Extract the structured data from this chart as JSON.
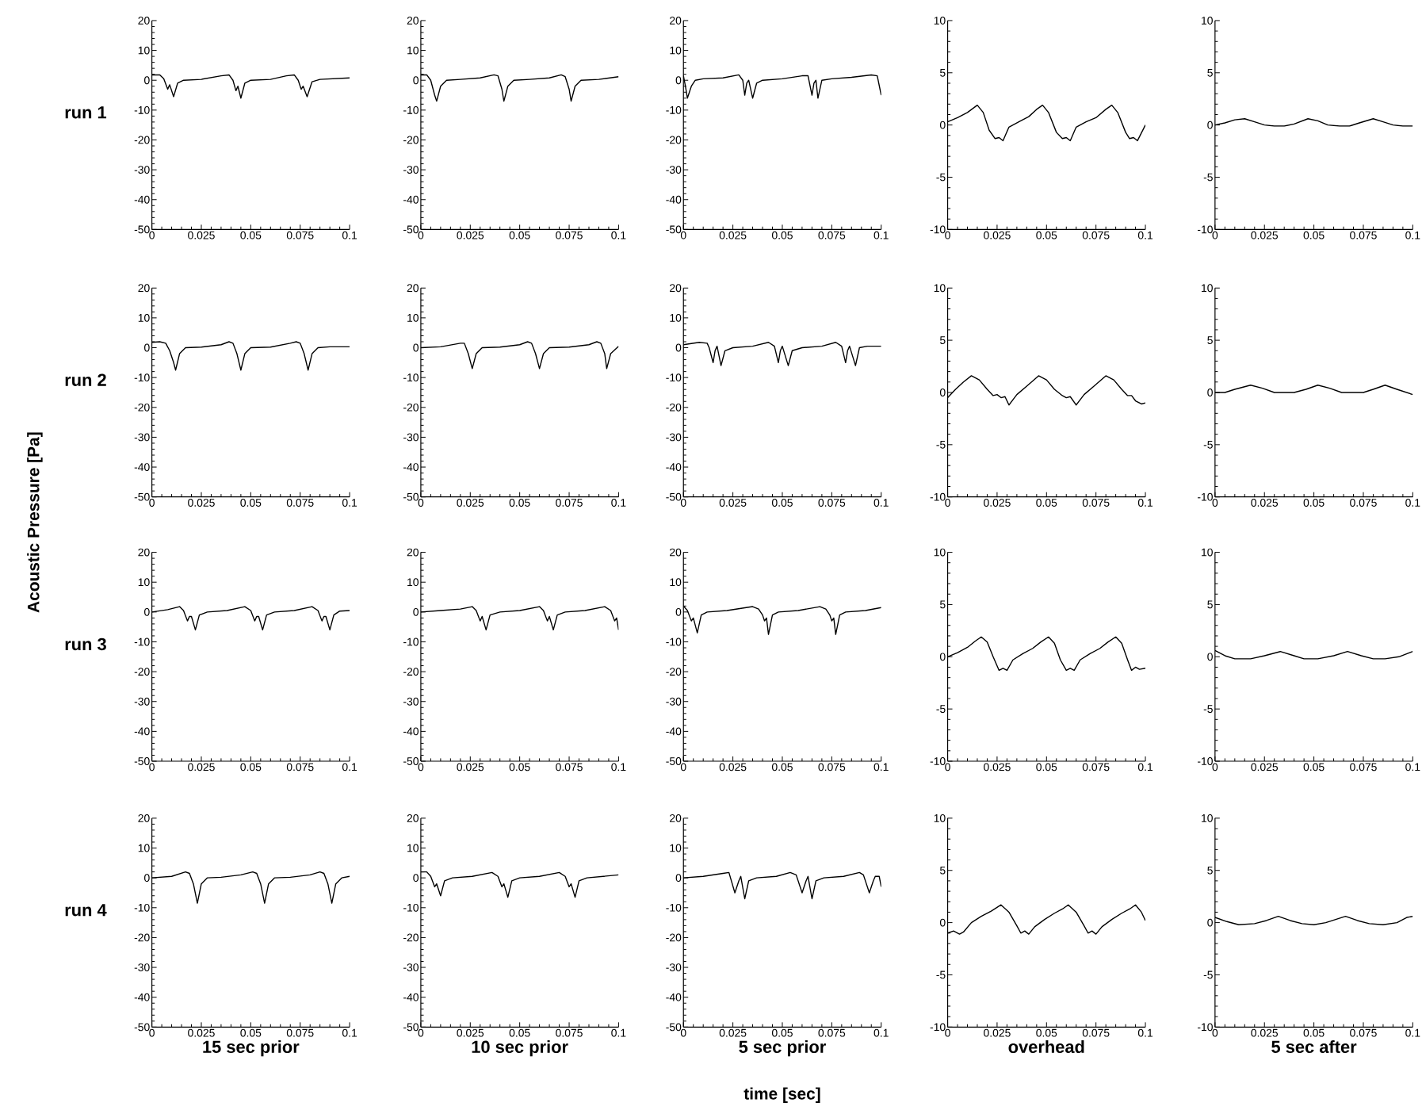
{
  "chart_data": [
    {
      "type": "line",
      "ylabel": "run 1",
      "xlim": [
        0,
        0.1
      ],
      "ylim": [
        -50,
        20
      ],
      "xticks": [
        0,
        0.025,
        0.05,
        0.075,
        0.1
      ],
      "yticks": [
        -50,
        -40,
        -30,
        -20,
        -10,
        0,
        10,
        20
      ],
      "x": [
        0,
        0.004,
        0.006,
        0.008,
        0.009,
        0.011,
        0.013,
        0.016,
        0.025,
        0.035,
        0.039,
        0.041,
        0.0425,
        0.0435,
        0.045,
        0.047,
        0.05,
        0.06,
        0.068,
        0.072,
        0.074,
        0.0755,
        0.0765,
        0.0785,
        0.081,
        0.085,
        0.1
      ],
      "series": [
        {
          "color": "#000000",
          "values": [
            1.8,
            1.8,
            0.5,
            -3,
            -1.5,
            -5.5,
            -1,
            0,
            0.3,
            1.5,
            1.8,
            0,
            -3.5,
            -2,
            -6,
            -1,
            0,
            0.3,
            1.5,
            1.8,
            0,
            -3,
            -2,
            -5.5,
            -0.5,
            0.3,
            0.8
          ]
        }
      ]
    },
    {
      "type": "line",
      "xlim": [
        0,
        0.1
      ],
      "ylim": [
        -50,
        20
      ],
      "xticks": [
        0,
        0.025,
        0.05,
        0.075,
        0.1
      ],
      "yticks": [
        -50,
        -40,
        -30,
        -20,
        -10,
        0,
        10,
        20
      ],
      "x": [
        0,
        0.003,
        0.005,
        0.007,
        0.008,
        0.01,
        0.013,
        0.02,
        0.03,
        0.037,
        0.039,
        0.041,
        0.042,
        0.044,
        0.047,
        0.055,
        0.065,
        0.071,
        0.073,
        0.075,
        0.076,
        0.078,
        0.081,
        0.09,
        0.1
      ],
      "series": [
        {
          "color": "#000000",
          "values": [
            1.8,
            1.8,
            0,
            -5,
            -7,
            -2,
            0,
            0.3,
            0.8,
            1.8,
            1.5,
            -3,
            -7,
            -2,
            0,
            0.3,
            0.8,
            1.8,
            1.2,
            -3,
            -7,
            -2,
            0,
            0.3,
            1.2
          ]
        }
      ]
    },
    {
      "type": "line",
      "xlim": [
        0,
        0.1
      ],
      "ylim": [
        -50,
        20
      ],
      "xticks": [
        0,
        0.025,
        0.05,
        0.075,
        0.1
      ],
      "yticks": [
        -50,
        -40,
        -30,
        -20,
        -10,
        0,
        10,
        20
      ],
      "x": [
        0,
        0.001,
        0.002,
        0.004,
        0.006,
        0.01,
        0.02,
        0.028,
        0.03,
        0.031,
        0.032,
        0.033,
        0.035,
        0.037,
        0.04,
        0.05,
        0.06,
        0.063,
        0.065,
        0.066,
        0.067,
        0.068,
        0.07,
        0.075,
        0.085,
        0.095,
        0.098,
        0.1
      ],
      "series": [
        {
          "color": "#000000",
          "values": [
            1.5,
            -2,
            -6,
            -2,
            0,
            0.5,
            0.8,
            1.8,
            0,
            -5,
            -1,
            0,
            -6,
            -1,
            0,
            0.5,
            1.5,
            1.5,
            -5,
            -1,
            0,
            -6,
            0,
            0.5,
            1,
            1.8,
            1.5,
            -5
          ]
        }
      ]
    },
    {
      "type": "line",
      "xlim": [
        0,
        0.1
      ],
      "ylim": [
        -10,
        10
      ],
      "xticks": [
        0,
        0.025,
        0.05,
        0.075,
        0.1
      ],
      "yticks": [
        -10,
        -5,
        0,
        5,
        10
      ],
      "x": [
        0,
        0.005,
        0.01,
        0.015,
        0.018,
        0.021,
        0.024,
        0.026,
        0.028,
        0.031,
        0.036,
        0.041,
        0.045,
        0.048,
        0.051,
        0.055,
        0.058,
        0.06,
        0.062,
        0.065,
        0.07,
        0.075,
        0.08,
        0.083,
        0.086,
        0.09,
        0.092,
        0.094,
        0.096,
        0.1
      ],
      "series": [
        {
          "color": "#000000",
          "values": [
            0.3,
            0.7,
            1.2,
            1.9,
            1.2,
            -0.5,
            -1.3,
            -1.2,
            -1.5,
            -0.2,
            0.3,
            0.8,
            1.5,
            1.9,
            1.2,
            -0.7,
            -1.3,
            -1.2,
            -1.5,
            -0.2,
            0.3,
            0.7,
            1.5,
            1.9,
            1.2,
            -0.7,
            -1.3,
            -1.2,
            -1.5,
            0
          ]
        }
      ]
    },
    {
      "type": "line",
      "xlim": [
        0,
        0.1
      ],
      "ylim": [
        -10,
        10
      ],
      "xticks": [
        0,
        0.025,
        0.05,
        0.075,
        0.1
      ],
      "yticks": [
        -10,
        -5,
        0,
        5,
        10
      ],
      "x": [
        0,
        0.005,
        0.01,
        0.015,
        0.02,
        0.025,
        0.03,
        0.035,
        0.04,
        0.047,
        0.052,
        0.057,
        0.063,
        0.068,
        0.073,
        0.08,
        0.085,
        0.09,
        0.095,
        0.1
      ],
      "series": [
        {
          "color": "#000000",
          "values": [
            0,
            0.2,
            0.5,
            0.6,
            0.3,
            0,
            -0.1,
            -0.1,
            0.1,
            0.6,
            0.4,
            0,
            -0.1,
            -0.1,
            0.2,
            0.6,
            0.3,
            0,
            -0.1,
            -0.1
          ]
        }
      ]
    },
    {
      "type": "line",
      "ylabel": "run 2",
      "xlim": [
        0,
        0.1
      ],
      "ylim": [
        -50,
        20
      ],
      "xticks": [
        0,
        0.025,
        0.05,
        0.075,
        0.1
      ],
      "yticks": [
        -50,
        -40,
        -30,
        -20,
        -10,
        0,
        10,
        20
      ],
      "x": [
        0,
        0.004,
        0.007,
        0.009,
        0.011,
        0.012,
        0.014,
        0.017,
        0.025,
        0.035,
        0.039,
        0.041,
        0.043,
        0.045,
        0.047,
        0.05,
        0.06,
        0.07,
        0.073,
        0.075,
        0.077,
        0.079,
        0.081,
        0.084,
        0.09,
        0.1
      ],
      "series": [
        {
          "color": "#000000",
          "values": [
            1.8,
            2,
            1.5,
            -1,
            -5,
            -7.5,
            -2,
            0,
            0.2,
            1,
            2,
            1.5,
            -2,
            -7.5,
            -2,
            0,
            0.2,
            1.5,
            2,
            1.5,
            -2,
            -7.5,
            -2,
            0,
            0.3,
            0.3
          ]
        }
      ]
    },
    {
      "type": "line",
      "xlim": [
        0,
        0.1
      ],
      "ylim": [
        -50,
        20
      ],
      "xticks": [
        0,
        0.025,
        0.05,
        0.075,
        0.1
      ],
      "yticks": [
        -50,
        -40,
        -30,
        -20,
        -10,
        0,
        10,
        20
      ],
      "x": [
        0,
        0.01,
        0.02,
        0.022,
        0.024,
        0.026,
        0.028,
        0.031,
        0.04,
        0.05,
        0.054,
        0.056,
        0.058,
        0.06,
        0.062,
        0.065,
        0.075,
        0.085,
        0.089,
        0.091,
        0.093,
        0.094,
        0.096,
        0.1
      ],
      "series": [
        {
          "color": "#000000",
          "values": [
            0,
            0.3,
            1.5,
            1.5,
            -2,
            -7,
            -2,
            0,
            0.2,
            1,
            2,
            1.5,
            -2,
            -7,
            -2,
            0,
            0.2,
            1,
            2,
            1.5,
            -2,
            -7,
            -2,
            0.5
          ]
        }
      ]
    },
    {
      "type": "line",
      "xlim": [
        0,
        0.1
      ],
      "ylim": [
        -50,
        20
      ],
      "xticks": [
        0,
        0.025,
        0.05,
        0.075,
        0.1
      ],
      "yticks": [
        -50,
        -40,
        -30,
        -20,
        -10,
        0,
        10,
        20
      ],
      "x": [
        0,
        0.008,
        0.012,
        0.013,
        0.015,
        0.016,
        0.017,
        0.019,
        0.021,
        0.025,
        0.035,
        0.043,
        0.046,
        0.048,
        0.049,
        0.05,
        0.053,
        0.055,
        0.06,
        0.07,
        0.077,
        0.08,
        0.082,
        0.083,
        0.084,
        0.087,
        0.089,
        0.093,
        0.1
      ],
      "series": [
        {
          "color": "#000000",
          "values": [
            1,
            1.8,
            1.5,
            0,
            -5,
            -1,
            0.5,
            -6,
            -1,
            0,
            0.5,
            1.8,
            0.5,
            -5,
            -1,
            0.5,
            -6,
            -1,
            0,
            0.5,
            1.8,
            0.5,
            -5,
            -1,
            0.5,
            -6,
            0,
            0.5,
            0.5
          ]
        }
      ]
    },
    {
      "type": "line",
      "xlim": [
        0,
        0.1
      ],
      "ylim": [
        -10,
        10
      ],
      "xticks": [
        0,
        0.025,
        0.05,
        0.075,
        0.1
      ],
      "yticks": [
        -10,
        -5,
        0,
        5,
        10
      ],
      "x": [
        0,
        0.004,
        0.008,
        0.012,
        0.016,
        0.02,
        0.023,
        0.025,
        0.027,
        0.029,
        0.031,
        0.035,
        0.04,
        0.046,
        0.05,
        0.054,
        0.058,
        0.06,
        0.062,
        0.065,
        0.069,
        0.074,
        0.08,
        0.084,
        0.088,
        0.091,
        0.093,
        0.095,
        0.098,
        0.1
      ],
      "series": [
        {
          "color": "#000000",
          "values": [
            -0.5,
            0.3,
            1,
            1.6,
            1.2,
            0.3,
            -0.3,
            -0.2,
            -0.5,
            -0.4,
            -1.2,
            -0.2,
            0.6,
            1.6,
            1.2,
            0.3,
            -0.3,
            -0.5,
            -0.4,
            -1.2,
            -0.2,
            0.6,
            1.6,
            1.2,
            0.3,
            -0.3,
            -0.3,
            -0.8,
            -1.1,
            -1
          ]
        }
      ]
    },
    {
      "type": "line",
      "xlim": [
        0,
        0.1
      ],
      "ylim": [
        -10,
        10
      ],
      "xticks": [
        0,
        0.025,
        0.05,
        0.075,
        0.1
      ],
      "yticks": [
        -10,
        -5,
        0,
        5,
        10
      ],
      "x": [
        0,
        0.005,
        0.01,
        0.018,
        0.024,
        0.03,
        0.035,
        0.04,
        0.046,
        0.052,
        0.058,
        0.064,
        0.07,
        0.075,
        0.08,
        0.086,
        0.092,
        0.1
      ],
      "series": [
        {
          "color": "#000000",
          "values": [
            0,
            0,
            0.3,
            0.7,
            0.4,
            0,
            0,
            0,
            0.3,
            0.7,
            0.4,
            0,
            0,
            0,
            0.3,
            0.7,
            0.3,
            -0.2
          ]
        }
      ]
    },
    {
      "type": "line",
      "ylabel": "run 3",
      "annotations": [
        "Acoustic Pressure [Pa]"
      ],
      "xlim": [
        0,
        0.1
      ],
      "ylim": [
        -50,
        20
      ],
      "xticks": [
        0,
        0.025,
        0.05,
        0.075,
        0.1
      ],
      "yticks": [
        -50,
        -40,
        -30,
        -20,
        -10,
        0,
        10,
        20
      ],
      "x": [
        0,
        0.008,
        0.014,
        0.016,
        0.018,
        0.019,
        0.02,
        0.022,
        0.024,
        0.028,
        0.038,
        0.047,
        0.05,
        0.052,
        0.053,
        0.054,
        0.056,
        0.058,
        0.062,
        0.072,
        0.081,
        0.084,
        0.086,
        0.087,
        0.088,
        0.09,
        0.092,
        0.095,
        0.1
      ],
      "series": [
        {
          "color": "#000000",
          "values": [
            0,
            0.8,
            1.8,
            0.5,
            -3,
            -1.5,
            -1.5,
            -6,
            -1,
            0,
            0.5,
            1.8,
            0.5,
            -3,
            -1.5,
            -1.5,
            -6,
            -1,
            0,
            0.5,
            1.8,
            0.5,
            -3,
            -1.5,
            -1.5,
            -6,
            -1,
            0.3,
            0.5
          ]
        }
      ]
    },
    {
      "type": "line",
      "xlim": [
        0,
        0.1
      ],
      "ylim": [
        -50,
        20
      ],
      "xticks": [
        0,
        0.025,
        0.05,
        0.075,
        0.1
      ],
      "yticks": [
        -50,
        -40,
        -30,
        -20,
        -10,
        0,
        10,
        20
      ],
      "x": [
        0,
        0.01,
        0.02,
        0.026,
        0.028,
        0.03,
        0.031,
        0.033,
        0.035,
        0.04,
        0.05,
        0.06,
        0.062,
        0.064,
        0.065,
        0.067,
        0.069,
        0.073,
        0.083,
        0.093,
        0.096,
        0.098,
        0.099,
        0.1
      ],
      "series": [
        {
          "color": "#000000",
          "values": [
            0,
            0.5,
            1,
            1.8,
            0.5,
            -3,
            -1.5,
            -6,
            -1,
            0,
            0.5,
            1.8,
            0.5,
            -3,
            -1.5,
            -6,
            -1,
            0,
            0.5,
            1.8,
            0.5,
            -3,
            -2,
            -6
          ]
        }
      ]
    },
    {
      "type": "line",
      "xlim": [
        0,
        0.1
      ],
      "ylim": [
        -50,
        20
      ],
      "xticks": [
        0,
        0.025,
        0.05,
        0.075,
        0.1
      ],
      "yticks": [
        -50,
        -40,
        -30,
        -20,
        -10,
        0,
        10,
        20
      ],
      "x": [
        0,
        0.002,
        0.004,
        0.005,
        0.007,
        0.009,
        0.012,
        0.022,
        0.035,
        0.038,
        0.04,
        0.041,
        0.042,
        0.043,
        0.045,
        0.048,
        0.058,
        0.069,
        0.072,
        0.074,
        0.075,
        0.076,
        0.077,
        0.079,
        0.082,
        0.092,
        0.1
      ],
      "series": [
        {
          "color": "#000000",
          "values": [
            2,
            0.5,
            -3,
            -2,
            -7,
            -1,
            0,
            0.5,
            1.8,
            1,
            -1,
            -3,
            -2,
            -7.5,
            -1,
            0,
            0.5,
            1.8,
            1,
            -1,
            -3,
            -2,
            -7.5,
            -1,
            0,
            0.5,
            1.5
          ]
        }
      ]
    },
    {
      "type": "line",
      "xlim": [
        0,
        0.1
      ],
      "ylim": [
        -10,
        10
      ],
      "xticks": [
        0,
        0.025,
        0.05,
        0.075,
        0.1
      ],
      "yticks": [
        -10,
        -5,
        0,
        5,
        10
      ],
      "x": [
        0,
        0.005,
        0.01,
        0.014,
        0.017,
        0.02,
        0.023,
        0.026,
        0.028,
        0.03,
        0.033,
        0.038,
        0.043,
        0.047,
        0.051,
        0.054,
        0.057,
        0.06,
        0.062,
        0.064,
        0.067,
        0.072,
        0.077,
        0.081,
        0.085,
        0.088,
        0.091,
        0.093,
        0.095,
        0.097,
        0.1
      ],
      "series": [
        {
          "color": "#000000",
          "values": [
            0,
            0.4,
            0.9,
            1.5,
            1.9,
            1.4,
            0,
            -1.3,
            -1.1,
            -1.3,
            -0.3,
            0.3,
            0.8,
            1.4,
            1.9,
            1.3,
            -0.3,
            -1.3,
            -1.1,
            -1.3,
            -0.3,
            0.3,
            0.8,
            1.4,
            1.9,
            1.3,
            -0.3,
            -1.3,
            -1,
            -1.2,
            -1.1
          ]
        }
      ]
    },
    {
      "type": "line",
      "xlim": [
        0,
        0.1
      ],
      "ylim": [
        -10,
        10
      ],
      "xticks": [
        0,
        0.025,
        0.05,
        0.075,
        0.1
      ],
      "yticks": [
        -10,
        -5,
        0,
        5,
        10
      ],
      "x": [
        0,
        0.005,
        0.01,
        0.018,
        0.025,
        0.033,
        0.04,
        0.045,
        0.052,
        0.06,
        0.067,
        0.074,
        0.08,
        0.086,
        0.093,
        0.1
      ],
      "series": [
        {
          "color": "#000000",
          "values": [
            0.6,
            0.1,
            -0.2,
            -0.2,
            0.1,
            0.5,
            0.1,
            -0.2,
            -0.2,
            0.1,
            0.5,
            0.1,
            -0.2,
            -0.2,
            0,
            0.5
          ]
        }
      ]
    },
    {
      "type": "line",
      "ylabel": "run 4",
      "xlabel": "15 sec prior",
      "xlim": [
        0,
        0.1
      ],
      "ylim": [
        -50,
        20
      ],
      "xticks": [
        0,
        0.025,
        0.05,
        0.075,
        0.1
      ],
      "yticks": [
        -50,
        -40,
        -30,
        -20,
        -10,
        0,
        10,
        20
      ],
      "x": [
        0,
        0.01,
        0.017,
        0.019,
        0.021,
        0.023,
        0.025,
        0.028,
        0.035,
        0.045,
        0.051,
        0.053,
        0.055,
        0.057,
        0.059,
        0.062,
        0.07,
        0.08,
        0.085,
        0.087,
        0.089,
        0.091,
        0.093,
        0.096,
        0.1
      ],
      "series": [
        {
          "color": "#000000",
          "values": [
            0,
            0.5,
            2,
            1.5,
            -2,
            -8.5,
            -2,
            0,
            0.2,
            1,
            2,
            1.5,
            -2,
            -8.5,
            -2,
            0,
            0.2,
            1,
            2,
            1.5,
            -2,
            -8.5,
            -2,
            0,
            0.5
          ]
        }
      ]
    },
    {
      "type": "line",
      "xlabel": "10 sec prior",
      "xlim": [
        0,
        0.1
      ],
      "ylim": [
        -50,
        20
      ],
      "xticks": [
        0,
        0.025,
        0.05,
        0.075,
        0.1
      ],
      "yticks": [
        -50,
        -40,
        -30,
        -20,
        -10,
        0,
        10,
        20
      ],
      "x": [
        0,
        0.003,
        0.005,
        0.007,
        0.008,
        0.01,
        0.012,
        0.016,
        0.026,
        0.036,
        0.039,
        0.041,
        0.042,
        0.044,
        0.046,
        0.05,
        0.06,
        0.07,
        0.073,
        0.075,
        0.076,
        0.078,
        0.08,
        0.084,
        0.1
      ],
      "series": [
        {
          "color": "#000000",
          "values": [
            2,
            2,
            0.5,
            -3,
            -2,
            -6,
            -1,
            0,
            0.5,
            1.8,
            0.5,
            -3,
            -2,
            -6.5,
            -1,
            0,
            0.5,
            1.8,
            0.5,
            -3,
            -2,
            -6.5,
            -1,
            0,
            1
          ]
        }
      ]
    },
    {
      "type": "line",
      "xlabel": "5 sec prior",
      "annotations": [
        "time [sec]"
      ],
      "xlim": [
        0,
        0.1
      ],
      "ylim": [
        -50,
        20
      ],
      "xticks": [
        0,
        0.025,
        0.05,
        0.075,
        0.1
      ],
      "yticks": [
        -50,
        -40,
        -30,
        -20,
        -10,
        0,
        10,
        20
      ],
      "x": [
        0,
        0.01,
        0.02,
        0.023,
        0.026,
        0.028,
        0.029,
        0.031,
        0.033,
        0.037,
        0.047,
        0.054,
        0.057,
        0.06,
        0.062,
        0.063,
        0.065,
        0.067,
        0.071,
        0.081,
        0.089,
        0.091,
        0.094,
        0.096,
        0.097,
        0.099,
        0.1
      ],
      "series": [
        {
          "color": "#000000",
          "values": [
            0,
            0.5,
            1.5,
            1.8,
            -5,
            -1,
            0.5,
            -7,
            -1,
            0,
            0.5,
            1.8,
            1,
            -5,
            -1,
            0.5,
            -7,
            -1,
            0,
            0.5,
            1.8,
            1,
            -5,
            -1,
            0.5,
            0.5,
            -3
          ]
        }
      ]
    },
    {
      "type": "line",
      "xlabel": "overhead",
      "xlim": [
        0,
        0.1
      ],
      "ylim": [
        -10,
        10
      ],
      "xticks": [
        0,
        0.025,
        0.05,
        0.075,
        0.1
      ],
      "yticks": [
        -10,
        -5,
        0,
        5,
        10
      ],
      "x": [
        0,
        0.003,
        0.006,
        0.008,
        0.012,
        0.017,
        0.022,
        0.027,
        0.031,
        0.035,
        0.037,
        0.039,
        0.041,
        0.044,
        0.049,
        0.054,
        0.058,
        0.061,
        0.065,
        0.069,
        0.071,
        0.073,
        0.075,
        0.078,
        0.083,
        0.088,
        0.092,
        0.095,
        0.098,
        0.1
      ],
      "series": [
        {
          "color": "#000000",
          "values": [
            -1,
            -0.8,
            -1.1,
            -0.9,
            0,
            0.6,
            1.1,
            1.7,
            1,
            -0.3,
            -1,
            -0.8,
            -1.1,
            -0.4,
            0.3,
            0.9,
            1.3,
            1.7,
            1,
            -0.3,
            -1,
            -0.8,
            -1.1,
            -0.4,
            0.3,
            0.9,
            1.3,
            1.7,
            1,
            0.2
          ]
        }
      ]
    },
    {
      "type": "line",
      "xlabel": "5 sec after",
      "xlim": [
        0,
        0.1
      ],
      "ylim": [
        -10,
        10
      ],
      "xticks": [
        0,
        0.025,
        0.05,
        0.075,
        0.1
      ],
      "yticks": [
        -10,
        -5,
        0,
        5,
        10
      ],
      "x": [
        0,
        0.006,
        0.012,
        0.02,
        0.026,
        0.032,
        0.038,
        0.044,
        0.05,
        0.056,
        0.061,
        0.066,
        0.072,
        0.078,
        0.085,
        0.092,
        0.097,
        0.1
      ],
      "series": [
        {
          "color": "#000000",
          "values": [
            0.5,
            0.1,
            -0.2,
            -0.1,
            0.2,
            0.6,
            0.2,
            -0.1,
            -0.2,
            0,
            0.3,
            0.6,
            0.2,
            -0.1,
            -0.2,
            0,
            0.5,
            0.6
          ]
        }
      ]
    }
  ]
}
